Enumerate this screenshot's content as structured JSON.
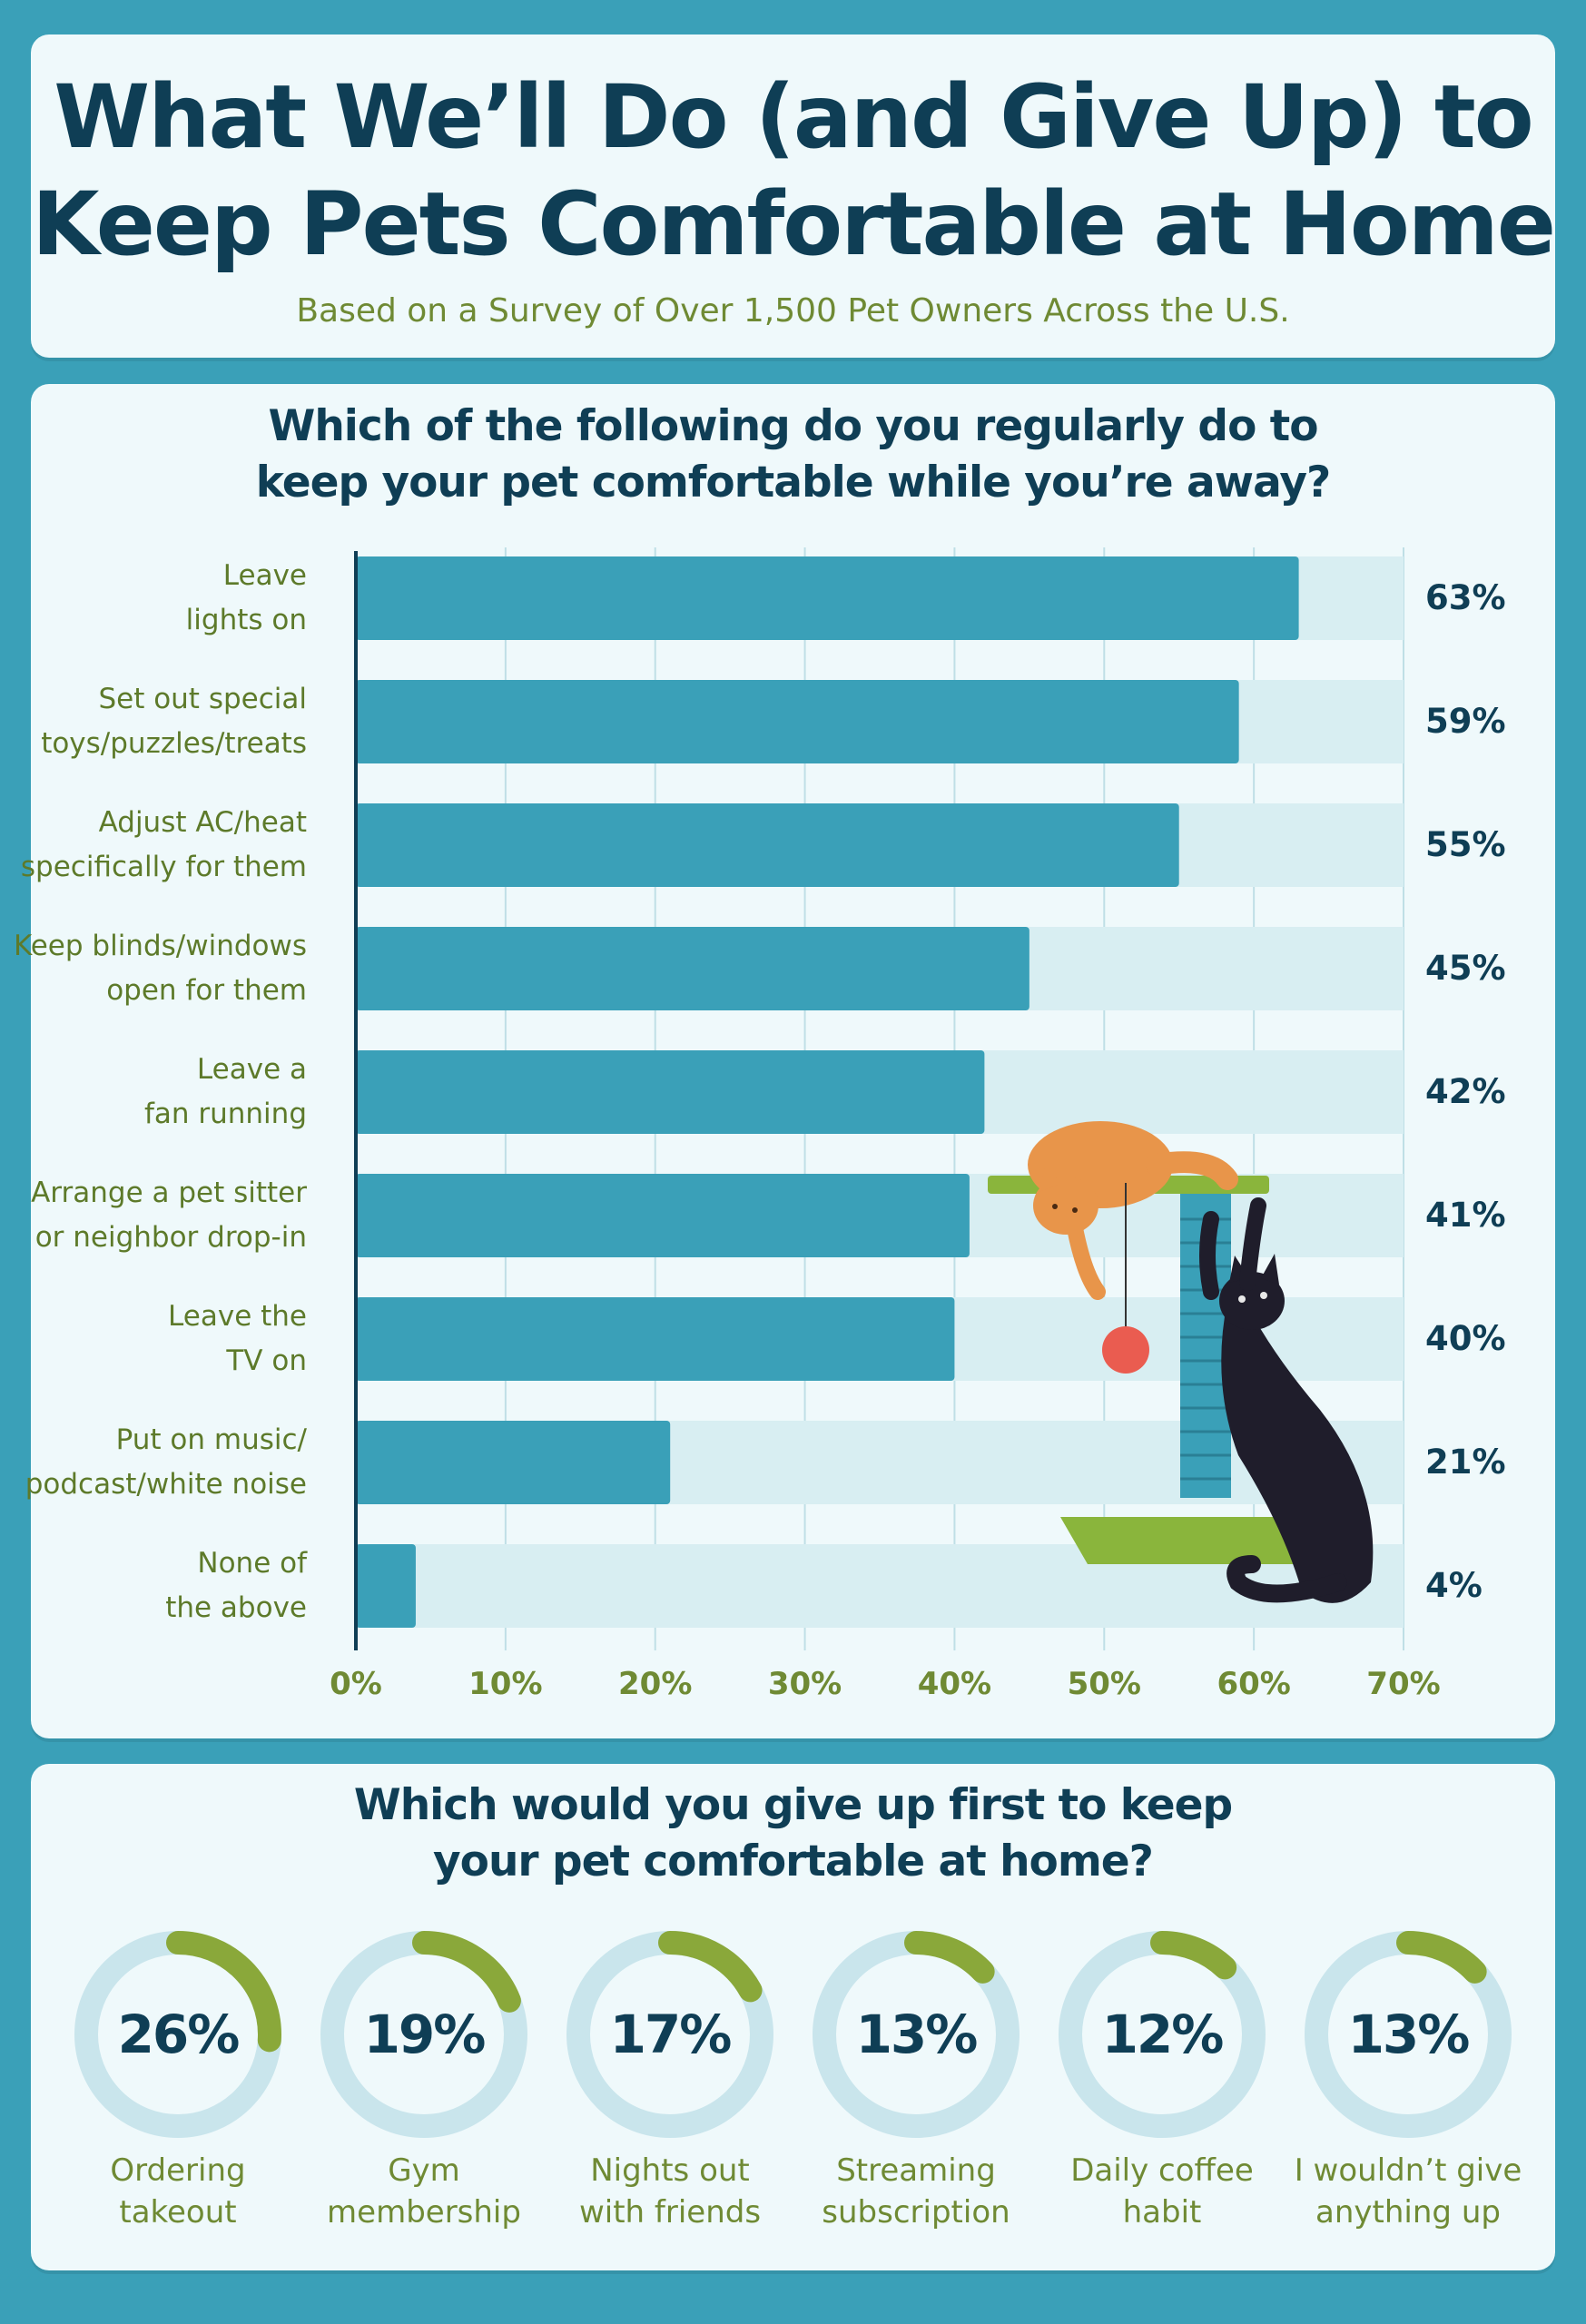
{
  "header": {
    "title_line1": "What We’ll Do (and Give Up) to",
    "title_line2": "Keep Pets Comfortable at Home",
    "subtitle": "Based on a Survey of Over 1,500 Pet Owners Across the U.S."
  },
  "colors": {
    "bar": "#3aa0b8",
    "track": "#d8eef2",
    "donut_track": "#c9e5ec",
    "donut_arc": "#8aa83a"
  },
  "chart_data": [
    {
      "type": "bar",
      "orientation": "horizontal",
      "title_line1": "Which of the following do you regularly do to",
      "title_line2": "keep your pet comfortable while you’re away?",
      "categories": [
        [
          "Leave",
          "lights on"
        ],
        [
          "Set out special",
          "toys/puzzles/treats"
        ],
        [
          "Adjust AC/heat",
          "specifically for them"
        ],
        [
          "Keep blinds/windows",
          "open for them"
        ],
        [
          "Leave a",
          "fan running"
        ],
        [
          "Arrange a pet sitter",
          "or neighbor drop-in"
        ],
        [
          "Leave the",
          "TV on"
        ],
        [
          "Put on music/",
          "podcast/white noise"
        ],
        [
          "None of",
          "the above"
        ]
      ],
      "values": [
        63,
        59,
        55,
        45,
        42,
        41,
        40,
        21,
        4
      ],
      "value_labels": [
        "63%",
        "59%",
        "55%",
        "45%",
        "42%",
        "41%",
        "40%",
        "21%",
        "4%"
      ],
      "xlim": [
        0,
        70
      ],
      "x_ticks": [
        0,
        10,
        20,
        30,
        40,
        50,
        60,
        70
      ],
      "x_tick_labels": [
        "0%",
        "10%",
        "20%",
        "30%",
        "40%",
        "50%",
        "60%",
        "70%"
      ],
      "grid": true
    },
    {
      "type": "pie",
      "style": "donut",
      "title_line1": "Which would you give up first to keep",
      "title_line2": "your pet comfortable at home?",
      "categories": [
        [
          "Ordering",
          "takeout"
        ],
        [
          "Gym",
          "membership"
        ],
        [
          "Nights out",
          "with friends"
        ],
        [
          "Streaming",
          "subscription"
        ],
        [
          "Daily coffee",
          "habit"
        ],
        [
          "I wouldn’t give",
          "anything up"
        ]
      ],
      "values": [
        26,
        19,
        17,
        13,
        12,
        13
      ],
      "value_labels": [
        "26%",
        "19%",
        "17%",
        "13%",
        "12%",
        "13%"
      ]
    }
  ]
}
